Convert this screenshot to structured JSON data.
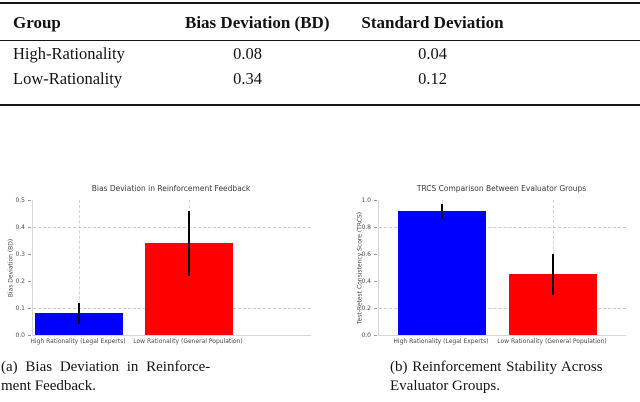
{
  "table": {
    "headers": [
      "Group",
      "Bias Deviation (BD)",
      "Standard Deviation"
    ],
    "rows": [
      [
        "High-Rationality",
        "0.08",
        "0.04"
      ],
      [
        "Low-Rationality",
        "0.34",
        "0.12"
      ]
    ]
  },
  "figure": {
    "caption_a": {
      "line1": "(a) Bias Deviation in Reinforce-",
      "line2": "ment Feedback."
    },
    "caption_b": {
      "line1": "(b) Reinforcement Stability Across",
      "line2": "Evaluator Groups."
    }
  },
  "chart_data": [
    {
      "type": "bar",
      "title": "Bias Deviation in Reinforcement Feedback",
      "ylabel": "Bias Deviation (BD)",
      "xlabel": "",
      "categories": [
        "High Rationality (Legal Experts)",
        "Low Rationality (General Population)"
      ],
      "values": [
        0.08,
        0.34
      ],
      "errors": [
        0.04,
        0.12
      ],
      "bar_colors": [
        "#0000ff",
        "#ff0000"
      ],
      "error_color": "#000000",
      "ylim": [
        0,
        0.5
      ],
      "yticks": [
        0.0,
        0.1,
        0.2,
        0.3,
        0.4,
        0.5
      ],
      "gridlines_y": [
        0.1,
        0.4
      ],
      "grid": "dashed",
      "legend": "none",
      "background": "#ffffff"
    },
    {
      "type": "bar",
      "title": "TRCS Comparison Between Evaluator Groups",
      "ylabel": "Test-Retest Consistency Score (TRCS)",
      "xlabel": "",
      "categories": [
        "High Rationality (Legal Experts)",
        "Low Rationality (General Population)"
      ],
      "values": [
        0.92,
        0.45
      ],
      "errors": [
        0.05,
        0.15
      ],
      "bar_colors": [
        "#0000ff",
        "#ff0000"
      ],
      "error_color": "#000000",
      "ylim": [
        0,
        1.0
      ],
      "yticks": [
        0.0,
        0.2,
        0.4,
        0.6,
        0.8,
        1.0
      ],
      "gridlines_y": [
        0.2,
        0.8
      ],
      "grid": "dashed",
      "legend": "none",
      "background": "#ffffff"
    }
  ]
}
